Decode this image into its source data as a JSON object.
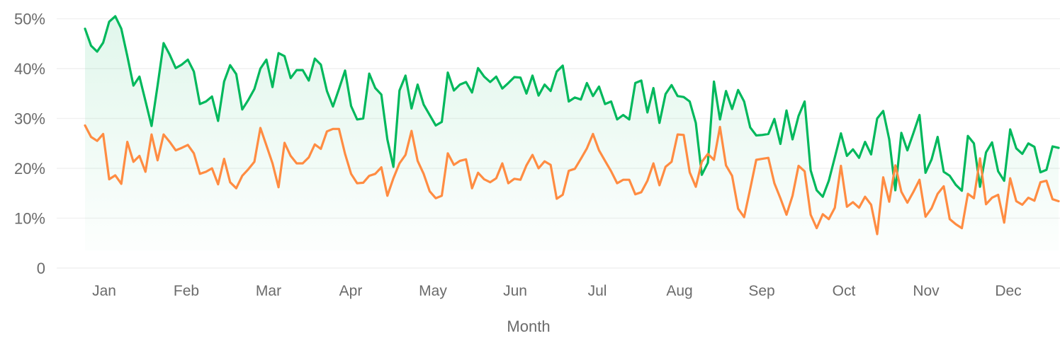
{
  "chart_data": {
    "type": "line",
    "title": "",
    "xlabel": "Month",
    "ylabel": "",
    "ylim": [
      0,
      50
    ],
    "y_ticks": [
      "0",
      "10%",
      "20%",
      "30%",
      "40%",
      "50%"
    ],
    "y_tick_values": [
      0,
      10,
      20,
      30,
      40,
      50
    ],
    "x_ticks": [
      "Jan",
      "Feb",
      "Mar",
      "Apr",
      "May",
      "Jun",
      "Jul",
      "Aug",
      "Sep",
      "Oct",
      "Nov",
      "Dec"
    ],
    "grid": true,
    "legend": "none",
    "series": [
      {
        "color": "#00b85c",
        "area_fill": true,
        "values": [
          48.0,
          44.6,
          43.4,
          45.2,
          49.4,
          50.5,
          48.0,
          42.5,
          36.6,
          38.4,
          33.5,
          28.5,
          36.6,
          45.1,
          42.8,
          40.1,
          40.8,
          41.8,
          39.4,
          32.9,
          33.4,
          34.4,
          29.5,
          37.4,
          40.7,
          38.9,
          31.8,
          33.7,
          35.9,
          40.0,
          41.8,
          36.3,
          43.1,
          42.5,
          38.1,
          39.7,
          39.7,
          37.6,
          42.0,
          40.8,
          35.5,
          32.4,
          35.9,
          39.6,
          32.5,
          29.8,
          30.0,
          39.0,
          36.1,
          34.8,
          25.8,
          20.3,
          35.6,
          38.6,
          32.0,
          36.8,
          32.8,
          30.7,
          28.6,
          29.3,
          39.2,
          35.6,
          36.8,
          37.3,
          35.2,
          40.1,
          38.4,
          37.3,
          38.4,
          36.0,
          37.1,
          38.3,
          38.2,
          35.0,
          38.6,
          34.6,
          36.8,
          35.5,
          39.4,
          40.6,
          33.4,
          34.2,
          33.8,
          37.1,
          34.5,
          36.4,
          32.9,
          33.4,
          29.8,
          30.7,
          29.8,
          37.1,
          37.6,
          31.2,
          36.1,
          29.1,
          34.9,
          36.7,
          34.5,
          34.3,
          33.4,
          29.1,
          18.7,
          21.1,
          37.4,
          29.8,
          35.5,
          31.9,
          35.7,
          33.4,
          28.2,
          26.6,
          26.7,
          26.9,
          29.9,
          24.9,
          31.6,
          25.8,
          30.5,
          33.4,
          19.6,
          15.6,
          14.3,
          17.5,
          22.2,
          27.0,
          22.5,
          23.8,
          22.1,
          25.3,
          22.8,
          30.0,
          31.5,
          25.8,
          15.6,
          27.1,
          23.6,
          27.1,
          30.7,
          19.1,
          21.8,
          26.3,
          19.3,
          18.5,
          16.7,
          15.5,
          26.5,
          25.0,
          16.3,
          23.2,
          25.2,
          19.4,
          17.5,
          27.8,
          24.0,
          22.9,
          25.0,
          24.3,
          19.2,
          19.7,
          24.4,
          24.1
        ]
      },
      {
        "color": "#ff8c42",
        "area_fill": false,
        "values": [
          28.6,
          26.3,
          25.5,
          26.9,
          17.8,
          18.6,
          16.9,
          25.3,
          21.3,
          22.5,
          19.3,
          26.8,
          21.6,
          26.8,
          25.3,
          23.6,
          24.1,
          24.7,
          23.0,
          18.9,
          19.3,
          20.0,
          16.8,
          21.9,
          17.2,
          16.0,
          18.5,
          19.8,
          21.3,
          28.1,
          24.6,
          21.0,
          16.2,
          25.1,
          22.5,
          21.0,
          21.0,
          22.2,
          24.8,
          23.9,
          27.4,
          27.9,
          27.9,
          22.9,
          18.9,
          17.0,
          17.1,
          18.5,
          18.9,
          20.2,
          14.5,
          18.0,
          21.0,
          22.7,
          27.5,
          21.5,
          18.9,
          15.4,
          14.0,
          14.5,
          23.0,
          20.7,
          21.5,
          21.8,
          16.0,
          19.1,
          17.8,
          17.2,
          18.0,
          21.0,
          17.0,
          17.9,
          17.7,
          20.6,
          22.7,
          20.0,
          21.4,
          20.7,
          13.9,
          14.7,
          19.5,
          19.9,
          21.9,
          24.0,
          26.9,
          23.6,
          21.5,
          19.4,
          17.0,
          17.7,
          17.7,
          14.8,
          15.2,
          17.5,
          21.0,
          16.6,
          20.3,
          21.3,
          26.8,
          26.7,
          19.2,
          16.3,
          21.3,
          22.9,
          21.7,
          28.3,
          20.6,
          18.5,
          11.9,
          10.2,
          15.9,
          21.7,
          21.9,
          22.1,
          17.0,
          14.0,
          10.7,
          14.5,
          20.5,
          19.4,
          10.7,
          8.0,
          10.8,
          9.8,
          12.1,
          20.5,
          12.3,
          13.2,
          12.1,
          14.3,
          12.7,
          6.8,
          18.2,
          13.3,
          20.6,
          15.3,
          13.1,
          15.3,
          17.7,
          10.3,
          12.0,
          14.9,
          16.4,
          9.8,
          8.8,
          8.0,
          14.9,
          14.0,
          22.0,
          12.8,
          14.1,
          14.7,
          9.1,
          18.0,
          13.4,
          12.7,
          14.1,
          13.5,
          17.2,
          17.5,
          13.8,
          13.4
        ]
      }
    ]
  }
}
